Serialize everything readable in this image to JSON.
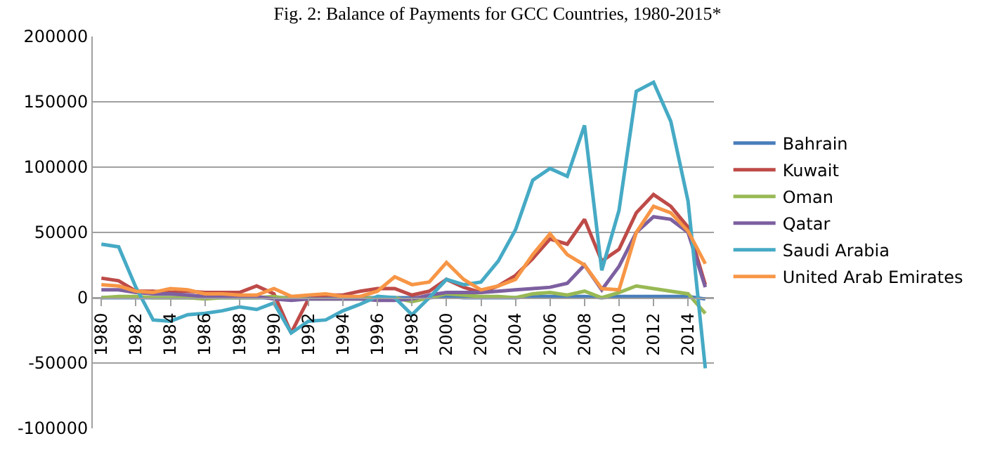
{
  "chart_data": {
    "type": "line",
    "title": "Fig. 2: Balance of Payments for GCC Countries, 1980-2015*",
    "categories": [
      "1980",
      null,
      "1982",
      null,
      "1984",
      null,
      "1986",
      null,
      "1988",
      null,
      "1990",
      null,
      "1992",
      null,
      "1994",
      null,
      "1996",
      null,
      "1998",
      null,
      "2000",
      null,
      "2002",
      null,
      "2004",
      null,
      "2006",
      null,
      "2008",
      null,
      "2010",
      null,
      "2012",
      null,
      "2014",
      null
    ],
    "series": [
      {
        "name": "Bahrain",
        "color": "#4a7ebb",
        "values": [
          0,
          0,
          0,
          0,
          0,
          0,
          0,
          0,
          0,
          0,
          0,
          0,
          0,
          0,
          0,
          0,
          0,
          0,
          0,
          0,
          1000,
          0,
          0,
          0,
          0,
          1000,
          1000,
          1000,
          1000,
          0,
          1000,
          1000,
          1000,
          1000,
          1000,
          -1000
        ]
      },
      {
        "name": "Kuwait",
        "color": "#be4b48",
        "values": [
          15000,
          13000,
          5000,
          5000,
          4000,
          5000,
          4000,
          4000,
          4000,
          9000,
          3000,
          -27000,
          -1000,
          2000,
          2000,
          5000,
          7000,
          7000,
          2000,
          5000,
          14000,
          8000,
          4000,
          9000,
          17000,
          30000,
          45000,
          41000,
          60000,
          28000,
          37000,
          65000,
          79000,
          70000,
          54000,
          10000
        ]
      },
      {
        "name": "Oman",
        "color": "#98b954",
        "values": [
          0,
          1000,
          1000,
          0,
          0,
          0,
          -1000,
          0,
          0,
          0,
          1000,
          -1000,
          -1000,
          -1000,
          -1000,
          -1000,
          0,
          0,
          -3000,
          0,
          3000,
          2000,
          1000,
          1000,
          0,
          3000,
          4000,
          2000,
          5000,
          0,
          4000,
          9000,
          7000,
          5000,
          3000,
          -12000
        ]
      },
      {
        "name": "Qatar",
        "color": "#7d60a0",
        "values": [
          6000,
          6000,
          4000,
          3000,
          3000,
          2000,
          1000,
          1000,
          1000,
          1000,
          -1000,
          -2000,
          -1000,
          -1000,
          -1000,
          -1000,
          -2000,
          -2000,
          -1000,
          2000,
          4000,
          4000,
          4000,
          5000,
          6000,
          7000,
          8000,
          11000,
          25000,
          6000,
          24000,
          50000,
          62000,
          60000,
          50000,
          8000
        ]
      },
      {
        "name": "Saudi Arabia",
        "color": "#46aac5",
        "values": [
          41000,
          39000,
          8000,
          -17000,
          -18000,
          -13000,
          -12000,
          -10000,
          -7000,
          -9000,
          -4000,
          -27000,
          -18000,
          -17000,
          -10000,
          -5000,
          1000,
          0,
          -13000,
          0,
          14000,
          10000,
          12000,
          28000,
          52000,
          90000,
          99000,
          93000,
          132000,
          21000,
          67000,
          158000,
          165000,
          135000,
          74000,
          -54000
        ]
      },
      {
        "name": "United Arab Emirates",
        "color": "#f79646",
        "values": [
          10000,
          9000,
          5000,
          4000,
          7000,
          6000,
          3000,
          3000,
          2000,
          2000,
          7000,
          1000,
          2000,
          3000,
          1000,
          1000,
          5000,
          16000,
          10000,
          12000,
          27000,
          14000,
          6000,
          9000,
          14000,
          33000,
          49000,
          33000,
          25000,
          7000,
          6000,
          50000,
          70000,
          65000,
          51000,
          26000
        ]
      }
    ],
    "ylim": [
      -100000,
      200000
    ],
    "yticks": [
      -100000,
      -50000,
      0,
      50000,
      100000,
      150000,
      200000
    ],
    "grid": "y",
    "legend": "right",
    "marker": "none",
    "line_style": "solid"
  }
}
